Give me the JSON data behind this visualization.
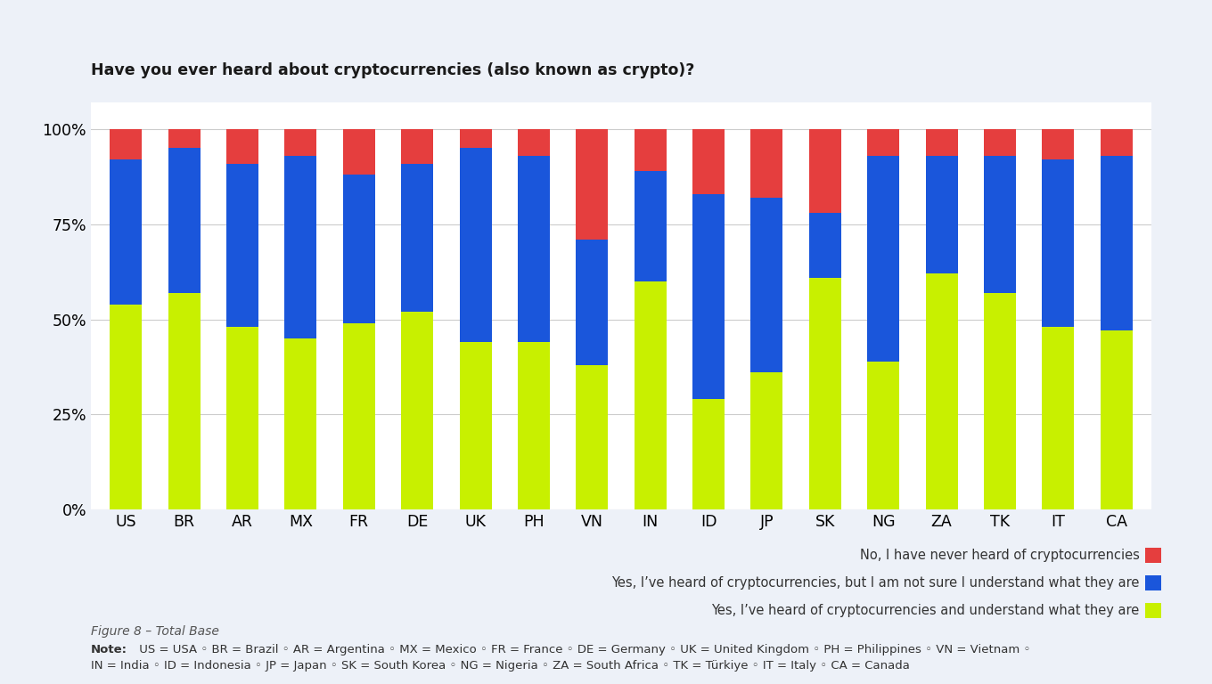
{
  "title": "Have you ever heard about cryptocurrencies (also known as crypto)?",
  "categories": [
    "US",
    "BR",
    "AR",
    "MX",
    "FR",
    "DE",
    "UK",
    "PH",
    "VN",
    "IN",
    "ID",
    "JP",
    "SK",
    "NG",
    "ZA",
    "TK",
    "IT",
    "CA"
  ],
  "yes_understand": [
    54,
    57,
    48,
    45,
    49,
    52,
    44,
    44,
    38,
    60,
    29,
    36,
    61,
    39,
    62,
    57,
    48,
    47
  ],
  "yes_not_sure": [
    38,
    38,
    43,
    48,
    39,
    39,
    51,
    49,
    33,
    29,
    54,
    46,
    17,
    54,
    31,
    36,
    44,
    46
  ],
  "no_never": [
    8,
    5,
    9,
    7,
    12,
    9,
    5,
    7,
    29,
    11,
    17,
    18,
    22,
    7,
    7,
    7,
    8,
    7
  ],
  "color_yes_understand": "#c8f000",
  "color_yes_not_sure": "#1a56db",
  "color_no_never": "#e53e3e",
  "legend_labels": [
    "No, I have never heard of cryptocurrencies",
    "Yes, I’ve heard of cryptocurrencies, but I am not sure I understand what they are",
    "Yes, I’ve heard of cryptocurrencies and understand what they are"
  ],
  "legend_colors": [
    "#e53e3e",
    "#1a56db",
    "#c8f000"
  ],
  "figure8_label": "Figure 8 – Total Base",
  "note_line1_bold": "Note:",
  "note_line1_rest": " US = USA ◦ BR = Brazil ◦ AR = Argentina ◦ MX = Mexico ◦ FR = France ◦ DE = Germany ◦ UK = United Kingdom ◦ PH = Philippines ◦ VN = Vietnam ◦",
  "note_line2": "IN = India ◦ ID = Indonesia ◦ JP = Japan ◦ SK = South Korea ◦ NG = Nigeria ◦ ZA = South Africa ◦ TK = Türkiye ◦ IT = Italy ◦ CA = Canada",
  "background_color": "#edf1f8",
  "plot_background": "#ffffff",
  "bar_width": 0.55
}
